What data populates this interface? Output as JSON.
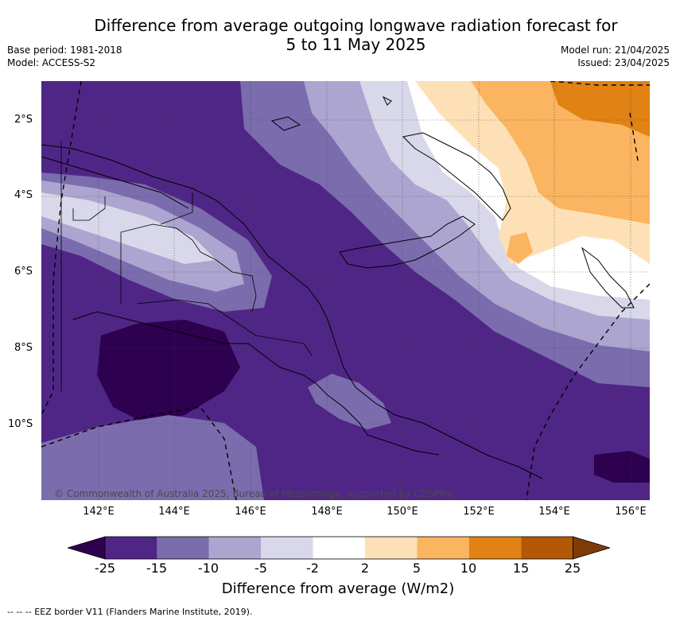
{
  "title": {
    "line1": "Difference from average outgoing longwave radiation forecast for",
    "line2": "5 to 11 May 2025"
  },
  "meta_left": {
    "base_period": "Base period: 1981-2018",
    "model": "Model: ACCESS-S2"
  },
  "meta_right": {
    "model_run": "Model run: 21/04/2025",
    "issued": "Issued: 23/04/2025"
  },
  "map": {
    "copyright": "© Commonwealth of Australia 2025, Bureau of Meteorology, supported by COSPPac",
    "lat_labels": [
      "2°S",
      "4°S",
      "6°S",
      "8°S",
      "10°S"
    ],
    "lon_labels": [
      "142°E",
      "144°E",
      "146°E",
      "148°E",
      "150°E",
      "152°E",
      "154°E",
      "156°E"
    ]
  },
  "colorbar": {
    "label": "Difference from average (W/m2)",
    "ticks": [
      "-25",
      "-15",
      "-10",
      "-5",
      "-2",
      "2",
      "5",
      "10",
      "15",
      "25"
    ],
    "colors": [
      "#2d0050",
      "#4f2686",
      "#7b6cae",
      "#aca5d0",
      "#d8d8ea",
      "#ffffff",
      "#fee0b6",
      "#fbb45f",
      "#e08214",
      "#b35806",
      "#7f3b08"
    ]
  },
  "footnote": "-- -- -- EEZ border V11 (Flanders Marine Institute, 2019)."
}
